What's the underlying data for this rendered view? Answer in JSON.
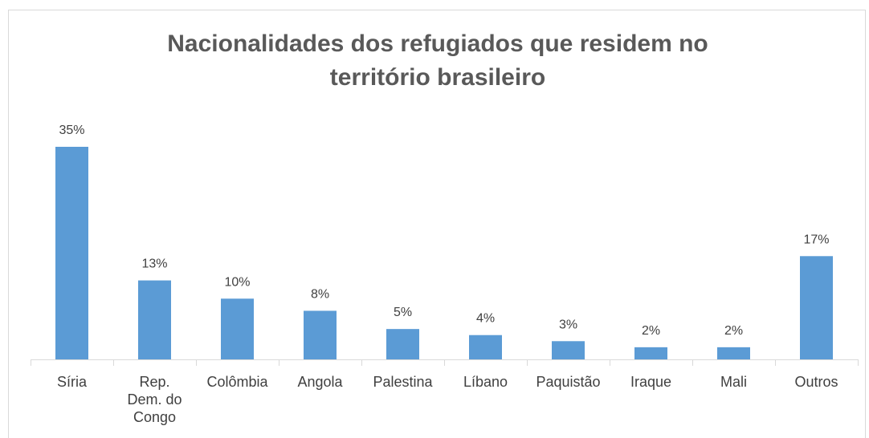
{
  "chart_data": {
    "type": "bar",
    "title": "Nacionalidades dos refugiados que residem no território brasileiro",
    "categories": [
      "Síria",
      "Rep. Dem. do Congo",
      "Colômbia",
      "Angola",
      "Palestina",
      "Líbano",
      "Paquistão",
      "Iraque",
      "Mali",
      "Outros"
    ],
    "values": [
      35,
      13,
      10,
      8,
      5,
      4,
      3,
      2,
      2,
      17
    ],
    "value_labels": [
      "35%",
      "13%",
      "10%",
      "8%",
      "5%",
      "4%",
      "3%",
      "2%",
      "2%",
      "17%"
    ],
    "color": "#5b9bd5"
  }
}
